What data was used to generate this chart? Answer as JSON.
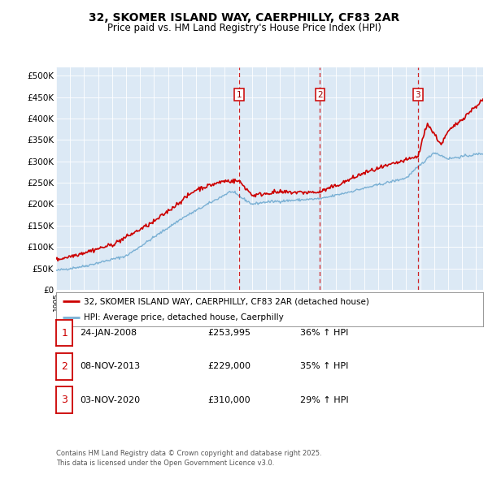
{
  "title": "32, SKOMER ISLAND WAY, CAERPHILLY, CF83 2AR",
  "subtitle": "Price paid vs. HM Land Registry's House Price Index (HPI)",
  "legend_line1": "32, SKOMER ISLAND WAY, CAERPHILLY, CF83 2AR (detached house)",
  "legend_line2": "HPI: Average price, detached house, Caerphilly",
  "footer": "Contains HM Land Registry data © Crown copyright and database right 2025.\nThis data is licensed under the Open Government Licence v3.0.",
  "yticks": [
    0,
    50000,
    100000,
    150000,
    200000,
    250000,
    300000,
    350000,
    400000,
    450000,
    500000
  ],
  "ytick_labels": [
    "£0",
    "£50K",
    "£100K",
    "£150K",
    "£200K",
    "£250K",
    "£300K",
    "£350K",
    "£400K",
    "£450K",
    "£500K"
  ],
  "ylim": [
    0,
    520000
  ],
  "background_color": "#dce9f5",
  "red_line_color": "#cc0000",
  "blue_line_color": "#7ab0d4",
  "dashed_line_color": "#cc0000",
  "sale_markers": [
    {
      "label": "1",
      "date_x": 2008.07
    },
    {
      "label": "2",
      "date_x": 2013.85
    },
    {
      "label": "3",
      "date_x": 2020.84
    }
  ],
  "table_rows": [
    {
      "num": "1",
      "date": "24-JAN-2008",
      "price": "£253,995",
      "change": "36% ↑ HPI"
    },
    {
      "num": "2",
      "date": "08-NOV-2013",
      "price": "£229,000",
      "change": "35% ↑ HPI"
    },
    {
      "num": "3",
      "date": "03-NOV-2020",
      "price": "£310,000",
      "change": "29% ↑ HPI"
    }
  ],
  "xmin": 1995.0,
  "xmax": 2025.5
}
